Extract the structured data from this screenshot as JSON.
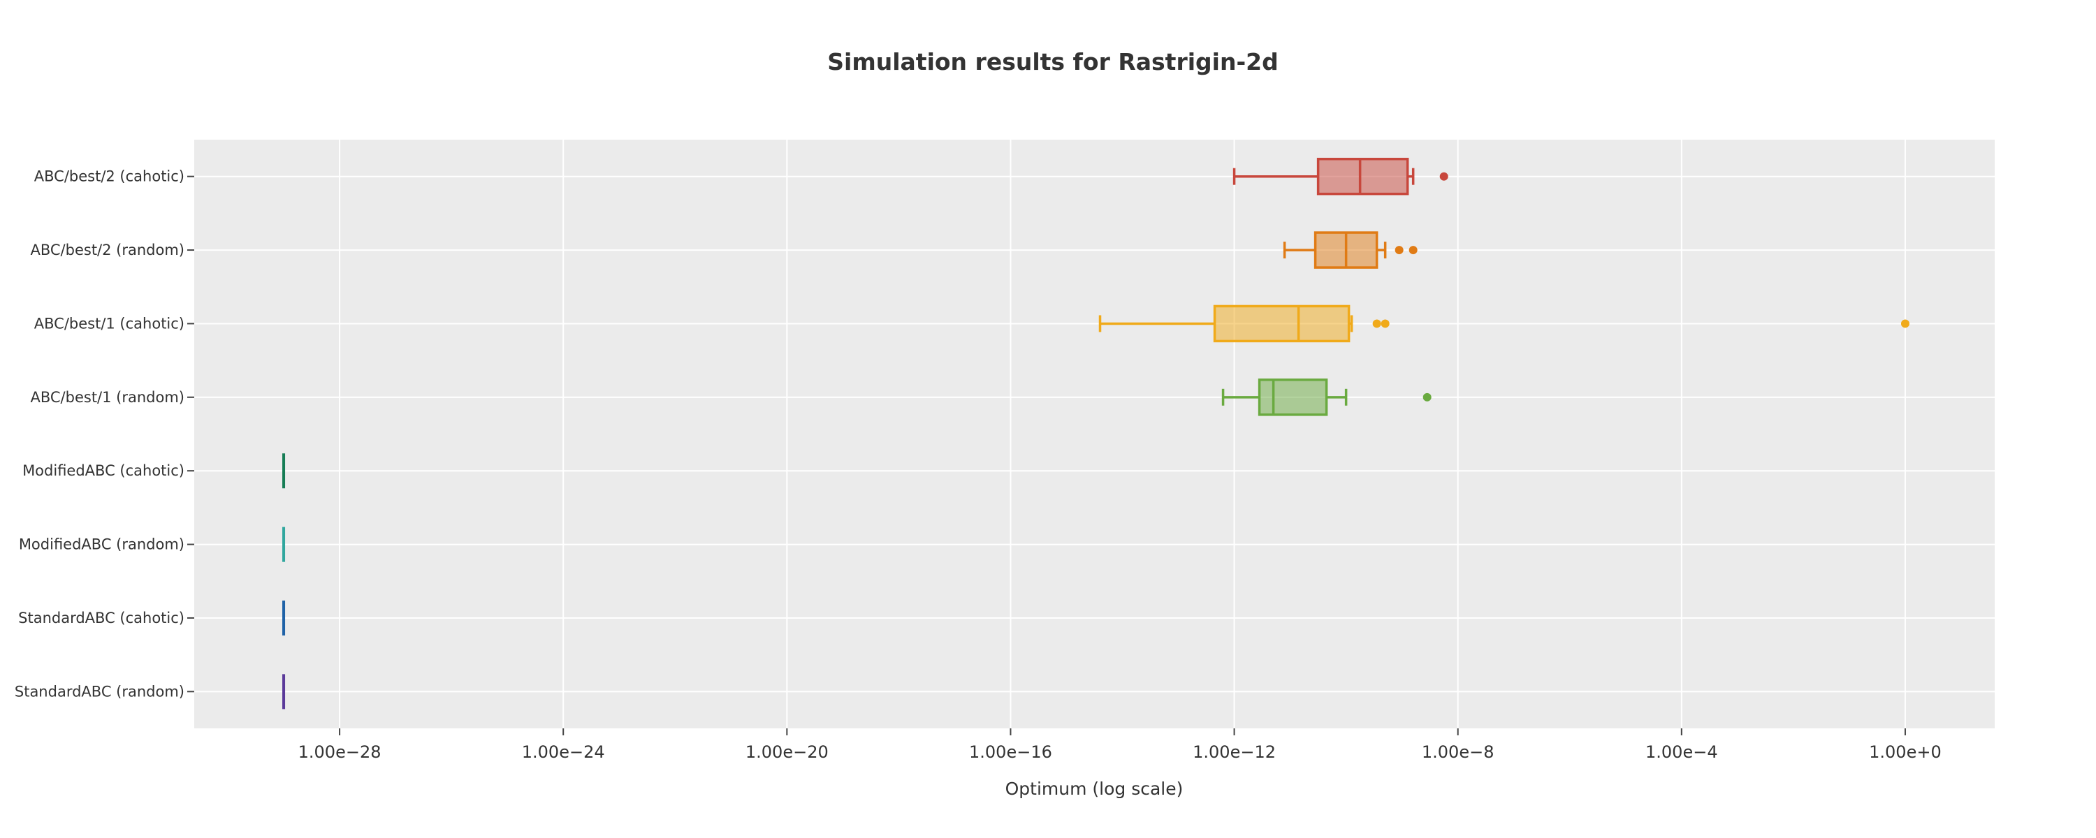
{
  "chart_data": {
    "type": "box",
    "orientation": "horizontal",
    "title": "Simulation results for Rastrigin-2d",
    "xlabel": "Optimum (log scale)",
    "ylabel": "",
    "x_scale": "log",
    "xlim_log10": [
      -30.6,
      1.6
    ],
    "x_ticks": [
      {
        "log10": -28,
        "label": "1.00e−28"
      },
      {
        "log10": -24,
        "label": "1.00e−24"
      },
      {
        "log10": -20,
        "label": "1.00e−20"
      },
      {
        "log10": -16,
        "label": "1.00e−16"
      },
      {
        "log10": -12,
        "label": "1.00e−12"
      },
      {
        "log10": -8,
        "label": "1.00e−8"
      },
      {
        "log10": -4,
        "label": "1.00e−4"
      },
      {
        "log10": 0,
        "label": "1.00e+0"
      }
    ],
    "grid": true,
    "legend": false,
    "categories": [
      "ABC/best/2 (cahotic)",
      "ABC/best/2 (random)",
      "ABC/best/1 (cahotic)",
      "ABC/best/1 (random)",
      "ModifiedABC (cahotic)",
      "ModifiedABC (random)",
      "StandardABC (cahotic)",
      "StandardABC (random)"
    ],
    "series": [
      {
        "category": "ABC/best/2 (cahotic)",
        "color": "#c8473c",
        "lowerfence_log10": -12.0,
        "q1_log10": -10.5,
        "median_log10": -9.75,
        "q3_log10": -8.9,
        "upperfence_log10": -8.8,
        "outliers_log10": [
          -8.25
        ]
      },
      {
        "category": "ABC/best/2 (random)",
        "color": "#e07b15",
        "lowerfence_log10": -11.1,
        "q1_log10": -10.55,
        "median_log10": -10.0,
        "q3_log10": -9.45,
        "upperfence_log10": -9.3,
        "outliers_log10": [
          -9.05,
          -8.8
        ]
      },
      {
        "category": "ABC/best/1 (cahotic)",
        "color": "#f0aa1a",
        "lowerfence_log10": -14.4,
        "q1_log10": -12.35,
        "median_log10": -10.85,
        "q3_log10": -9.95,
        "upperfence_log10": -9.9,
        "outliers_log10": [
          -9.45,
          -9.3,
          0.0
        ]
      },
      {
        "category": "ABC/best/1 (random)",
        "color": "#6aaa40",
        "lowerfence_log10": -12.2,
        "q1_log10": -11.55,
        "median_log10": -11.3,
        "q3_log10": -10.35,
        "upperfence_log10": -10.0,
        "outliers_log10": [
          -8.55
        ]
      },
      {
        "category": "ModifiedABC (cahotic)",
        "color": "#167d55",
        "lowerfence_log10": -29.0,
        "q1_log10": -29.0,
        "median_log10": -29.0,
        "q3_log10": -29.0,
        "upperfence_log10": -29.0,
        "outliers_log10": []
      },
      {
        "category": "ModifiedABC (random)",
        "color": "#31a79e",
        "lowerfence_log10": -29.0,
        "q1_log10": -29.0,
        "median_log10": -29.0,
        "q3_log10": -29.0,
        "upperfence_log10": -29.0,
        "outliers_log10": []
      },
      {
        "category": "StandardABC (cahotic)",
        "color": "#1f62a7",
        "lowerfence_log10": -29.0,
        "q1_log10": -29.0,
        "median_log10": -29.0,
        "q3_log10": -29.0,
        "upperfence_log10": -29.0,
        "outliers_log10": []
      },
      {
        "category": "StandardABC (random)",
        "color": "#5b3a9a",
        "lowerfence_log10": -29.0,
        "q1_log10": -29.0,
        "median_log10": -29.0,
        "q3_log10": -29.0,
        "upperfence_log10": -29.0,
        "outliers_log10": []
      }
    ]
  }
}
